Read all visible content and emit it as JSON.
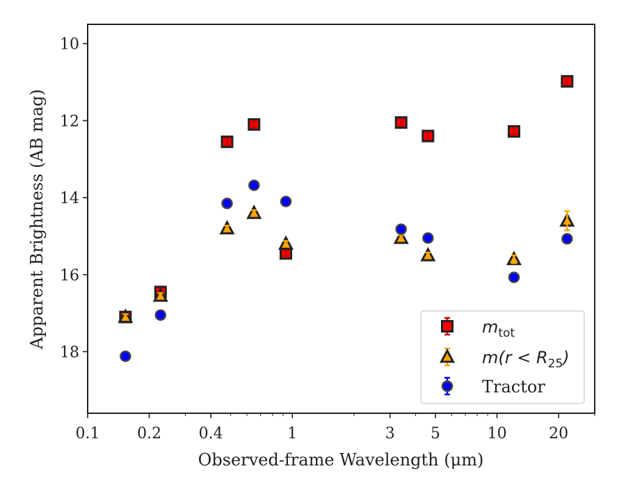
{
  "chart_data": {
    "type": "scatter",
    "title": "",
    "xlabel": "Observed-frame Wavelength (μm)",
    "ylabel": "Apparent Brightness (AB mag)",
    "xscale": "log",
    "xlim": [
      0.1,
      30
    ],
    "ylim": [
      19.6,
      9.5
    ],
    "y_inverted": true,
    "xticks": [
      0.1,
      0.2,
      0.4,
      1,
      3,
      5,
      10,
      20
    ],
    "xtick_labels": [
      "0.1",
      "0.2",
      "0.4",
      "1",
      "3",
      "5",
      "10",
      "20"
    ],
    "yticks": [
      10,
      12,
      14,
      16,
      18
    ],
    "ytick_labels": [
      "10",
      "12",
      "14",
      "16",
      "18"
    ],
    "grid": false,
    "legend_position": "bottom-right",
    "series": [
      {
        "name": "m_tot",
        "marker": "square",
        "color": "#ff0000",
        "edge_color": "#222222",
        "error_color": "#cc0000",
        "x": [
          0.153,
          0.227,
          0.48,
          0.65,
          0.93,
          3.4,
          4.6,
          12.1,
          22.0
        ],
        "y": [
          17.1,
          16.45,
          12.55,
          12.1,
          15.45,
          12.05,
          12.4,
          12.28,
          10.98
        ],
        "yerr": [
          0.03,
          0.03,
          0.02,
          0.02,
          0.02,
          0.02,
          0.02,
          0.02,
          0.03
        ]
      },
      {
        "name": "m(r<R25)",
        "marker": "triangle",
        "color": "#ffa500",
        "edge_color": "#222222",
        "error_color": "#ffa500",
        "x": [
          0.153,
          0.227,
          0.48,
          0.65,
          0.93,
          3.4,
          4.6,
          12.1,
          22.0
        ],
        "y": [
          17.1,
          16.55,
          14.8,
          14.4,
          15.2,
          15.05,
          15.5,
          15.6,
          14.6
        ],
        "yerr": [
          0.03,
          0.03,
          0.02,
          0.02,
          0.02,
          0.02,
          0.02,
          0.1,
          0.25
        ]
      },
      {
        "name": "Tractor",
        "marker": "circle",
        "color": "#0000ff",
        "edge_color": "#444444",
        "error_color": "#0000ff",
        "x": [
          0.153,
          0.227,
          0.48,
          0.65,
          0.93,
          3.4,
          4.6,
          12.1,
          22.0
        ],
        "y": [
          18.12,
          17.05,
          14.15,
          13.68,
          14.1,
          14.82,
          15.05,
          16.07,
          15.07
        ],
        "yerr": [
          0.04,
          0.04,
          0.03,
          0.03,
          0.03,
          0.03,
          0.03,
          0.03,
          0.06
        ]
      }
    ],
    "legend": [
      {
        "label_main": "m",
        "label_sub": "tot"
      },
      {
        "label_main": "m(r < R",
        "label_sub": "25",
        "label_end": ")"
      },
      {
        "label_main": "Tractor"
      }
    ]
  }
}
